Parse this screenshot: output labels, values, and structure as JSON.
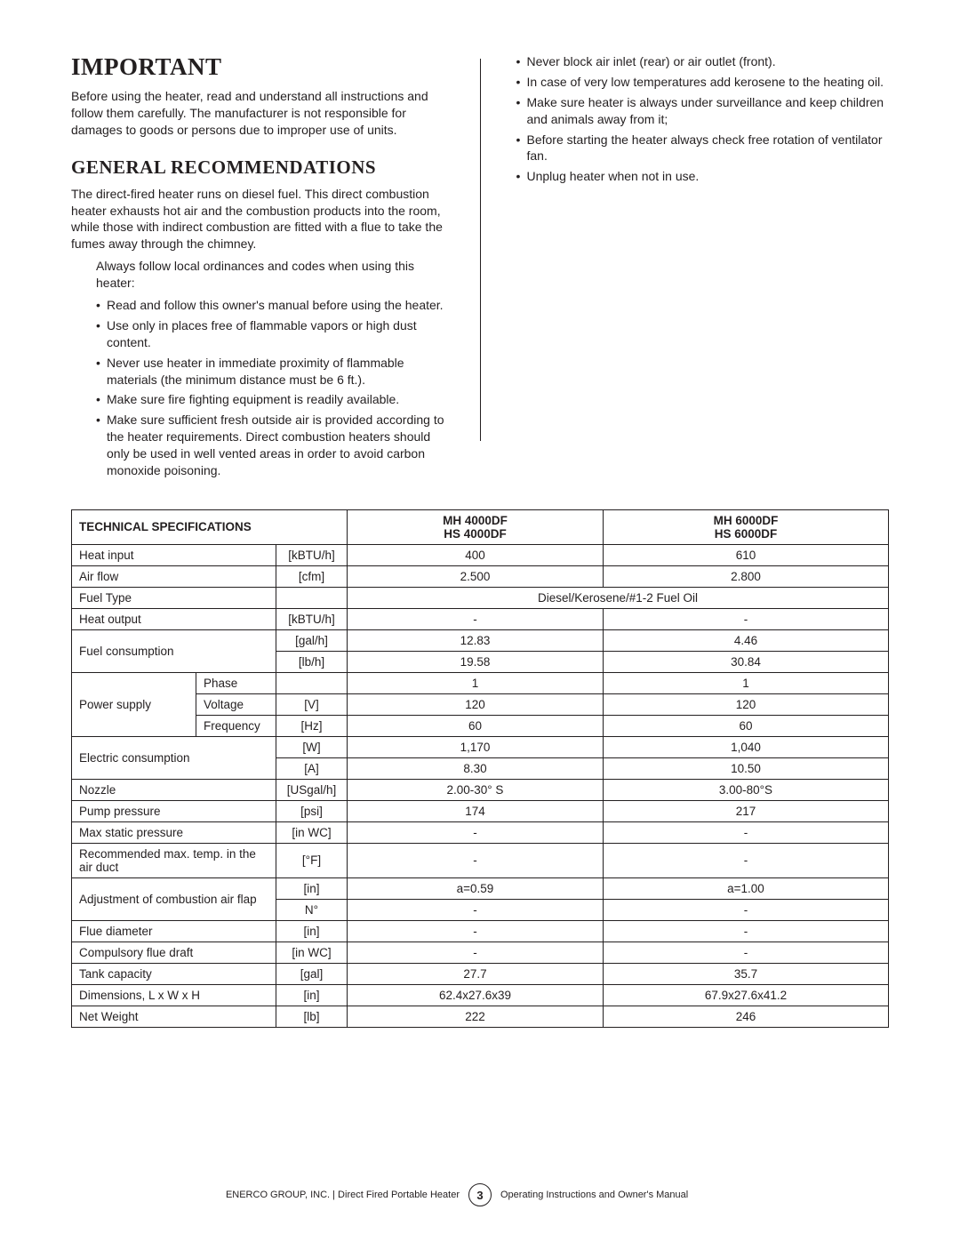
{
  "headings": {
    "important": "Important",
    "general": "General Recommendations",
    "spec_title": "TECHNICAL SPECIFICATIONS",
    "model1_a": "MH 4000DF",
    "model1_b": "HS 4000DF",
    "model2_a": "MH 6000DF",
    "model2_b": "HS 6000DF"
  },
  "paras": {
    "important_body": "Before using the heater, read and understand all instructions and follow them carefully. The manufacturer is not responsible for damages to goods or persons due to improper use of units.",
    "genrec_body": "The direct-fired heater runs on diesel fuel. This direct combustion heater exhausts hot air and the combustion products into the room, while those with indirect combustion are fitted with a flue to take the fumes away through the chimney.",
    "intro_indent": "Always follow local ordinances and codes when using this heater:"
  },
  "left_bullets": {
    "b0": "Read and follow this owner's manual before using the heater.",
    "b1": "Use only in places free of flammable vapors or high dust content.",
    "b2": "Never use heater in immediate proximity of flammable materials (the minimum distance must be 6 ft.).",
    "b3": "Make sure fire fighting equipment is readily available.",
    "b4": "Make sure sufficient fresh outside air is provided according to the heater requirements. Direct combustion heaters should only be used in well vented areas in order to avoid carbon monoxide poisoning."
  },
  "right_bullets": {
    "b0": "Never block air inlet (rear) or air outlet (front).",
    "b1": "In case of very low temperatures add kerosene to the heating oil.",
    "b2": "Make sure heater is always under surveillance and keep children and animals away from it;",
    "b3": "Before starting the heater always check free rotation of ventilator fan.",
    "b4": "Unplug heater when not in use."
  },
  "spec": {
    "heat_input": {
      "label": "Heat input",
      "unit": "[kBTU/h]",
      "v1": "400",
      "v2": "610"
    },
    "air_flow": {
      "label": "Air flow",
      "unit": "[cfm]",
      "v1": "2.500",
      "v2": "2.800"
    },
    "fuel_type": {
      "label": "Fuel Type",
      "unit": "",
      "v": "Diesel/Kerosene/#1-2 Fuel Oil"
    },
    "heat_output": {
      "label": "Heat output",
      "unit": "[kBTU/h]",
      "v1": "-",
      "v2": "-"
    },
    "fuel_cons": {
      "label": "Fuel consumption",
      "u1": "[gal/h]",
      "v1a": "12.83",
      "v1b": "4.46",
      "u2": "[lb/h]",
      "v2a": "19.58",
      "v2b": "30.84"
    },
    "power": {
      "label": "Power supply",
      "phase": "Phase",
      "voltage": "Voltage",
      "freq": "Frequency",
      "u_phase": "",
      "u_volt": "[V]",
      "u_freq": "[Hz]",
      "p1": "1",
      "p2": "1",
      "v1": "120",
      "v2": "120",
      "f1": "60",
      "f2": "60"
    },
    "elec": {
      "label": "Electric consumption",
      "u1": "[W]",
      "v1a": "1,170",
      "v1b": "1,040",
      "u2": "[A]",
      "v2a": "8.30",
      "v2b": "10.50"
    },
    "nozzle": {
      "label": "Nozzle",
      "unit": "[USgal/h]",
      "v1": "2.00-30° S",
      "v2": "3.00-80°S"
    },
    "pump": {
      "label": "Pump pressure",
      "unit": "[psi]",
      "v1": "174",
      "v2": "217"
    },
    "maxstatic": {
      "label": "Max static pressure",
      "unit": "[in WC]",
      "v1": "-",
      "v2": "-"
    },
    "recmax": {
      "label": "Recommended max. temp. in the air duct",
      "unit": "[°F]",
      "v1": "-",
      "v2": "-"
    },
    "adjust": {
      "label": "Adjustment of combustion air flap",
      "u1": "[in]",
      "v1a": "a=0.59",
      "v1b": "a=1.00",
      "u2": "N°",
      "v2a": "-",
      "v2b": "-"
    },
    "flue": {
      "label": "Flue diameter",
      "unit": "[in]",
      "v1": "-",
      "v2": "-"
    },
    "draft": {
      "label": "Compulsory flue draft",
      "unit": "[in WC]",
      "v1": "-",
      "v2": "-"
    },
    "tank": {
      "label": "Tank capacity",
      "unit": "[gal]",
      "v1": "27.7",
      "v2": "35.7"
    },
    "dims": {
      "label": "Dimensions, L x W x H",
      "unit": "[in]",
      "v1": "62.4x27.6x39",
      "v2": "67.9x27.6x41.2"
    },
    "weight": {
      "label": "Net Weight",
      "unit": "[lb]",
      "v1": "222",
      "v2": "246"
    }
  },
  "footer": {
    "left": "ENERCO GROUP, INC. | Direct Fired Portable Heater",
    "page": "3",
    "right": "Operating Instructions and Owner's Manual"
  }
}
